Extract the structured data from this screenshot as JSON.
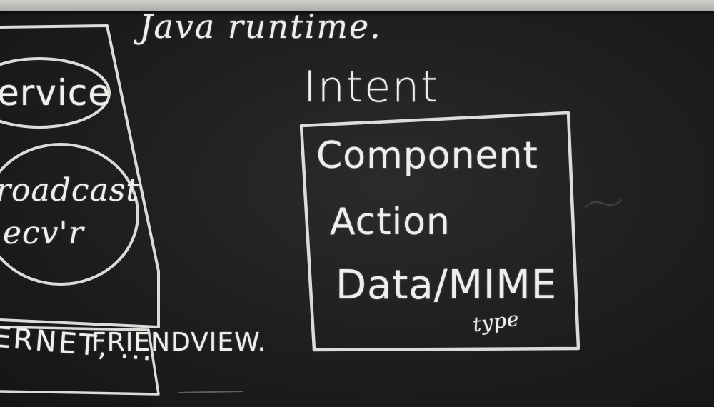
{
  "blackboard": {
    "title": "Java runtime.",
    "intent_heading": "Intent",
    "intent_fields": [
      "Component",
      "Action",
      "Data/MIME"
    ],
    "mime_subscript": "type",
    "left_column": {
      "service": "ervice",
      "broadcast_receiver_line1": "roadcast",
      "broadcast_receiver_line2": "ecv'r",
      "network_label": "ERNET, ...",
      "friends_label": "FRIENDVIEW."
    }
  },
  "colors": {
    "board": "#1d1e1f",
    "chalk": "#eeeeea",
    "ledge": "#c4c5c1"
  }
}
